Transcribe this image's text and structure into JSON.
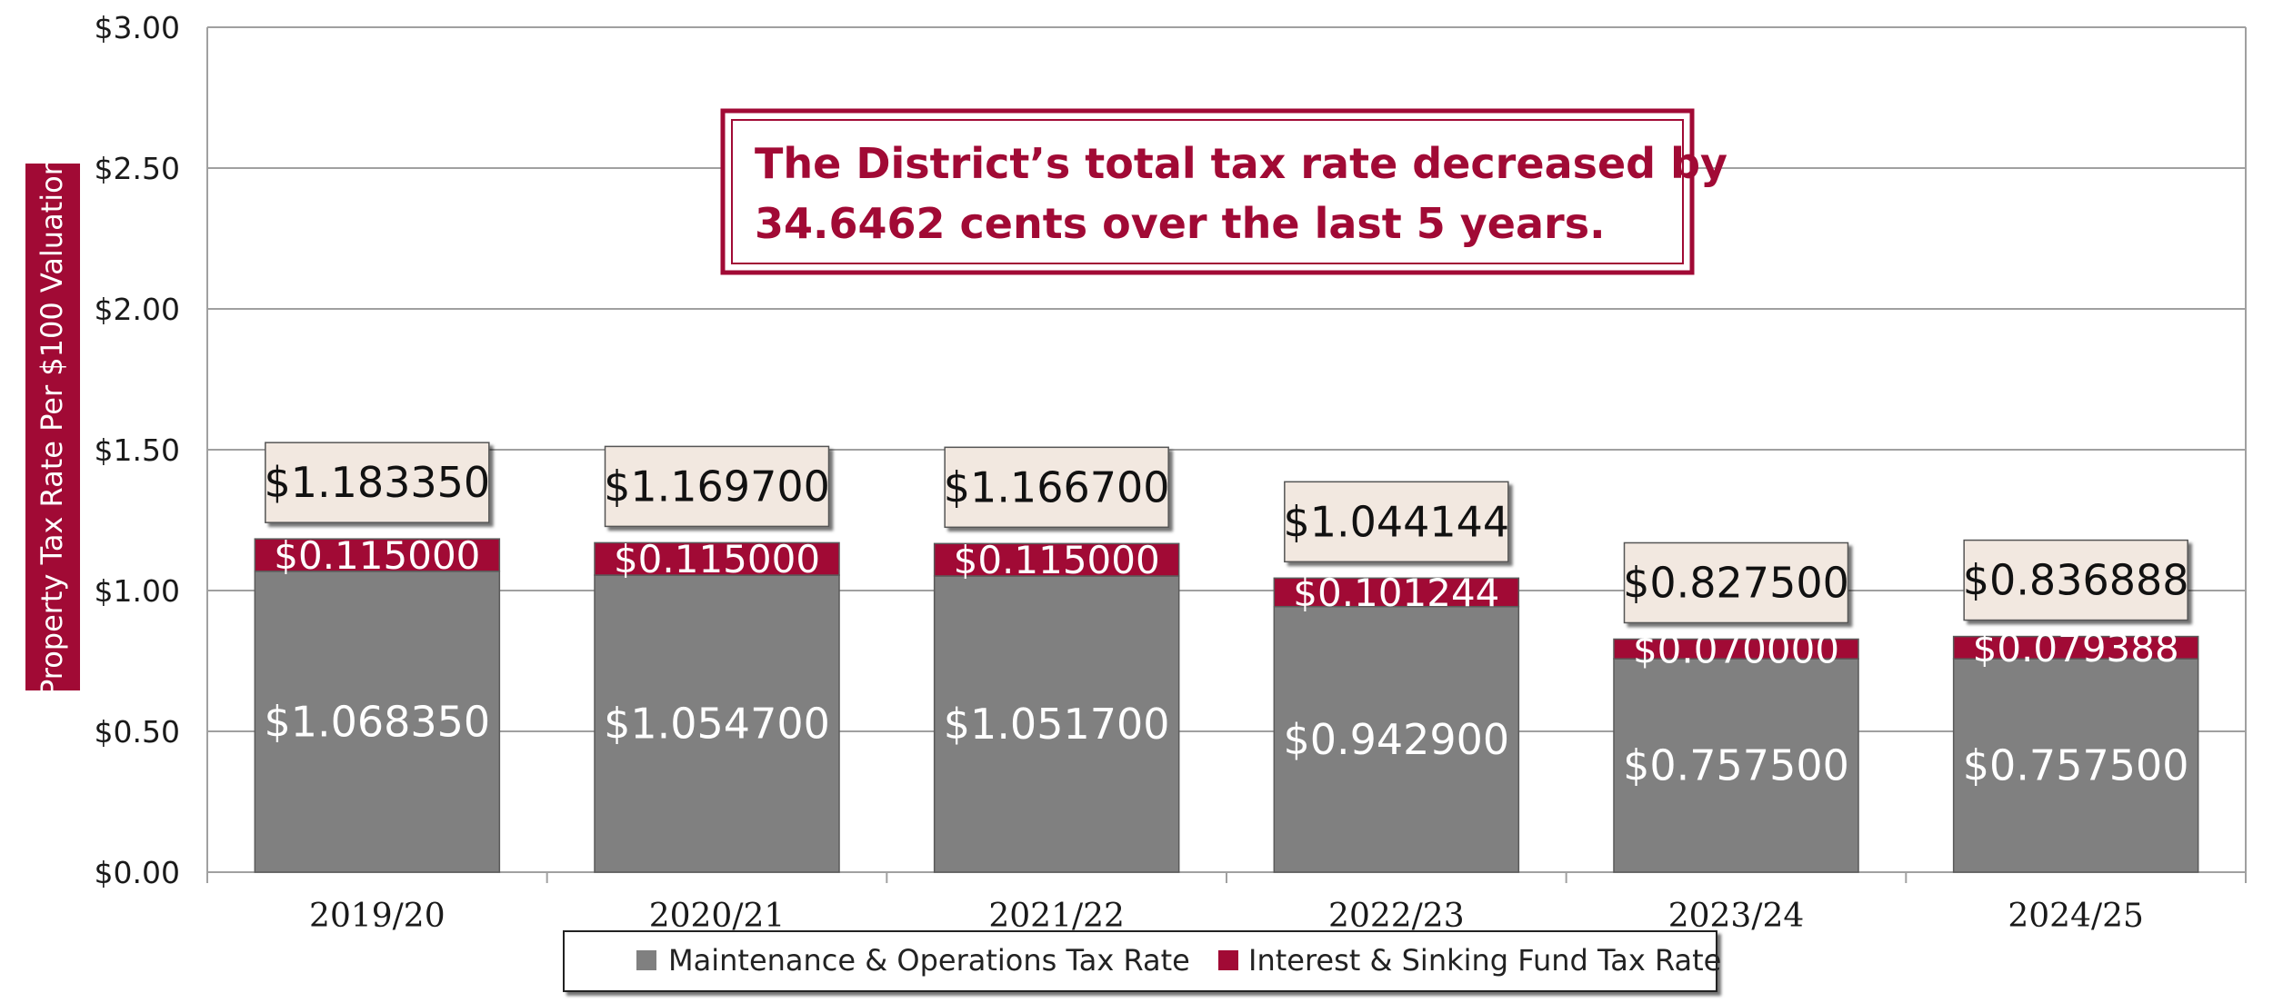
{
  "chart_data": {
    "type": "stacked-bar",
    "categories": [
      "2019/20",
      "2020/21",
      "2021/22",
      "2022/23",
      "2023/24",
      "2024/25"
    ],
    "series": [
      {
        "name": "Maintenance & Operations Tax Rate",
        "color": "#808080",
        "values": [
          1.06835,
          1.0547,
          1.0517,
          0.9429,
          0.7575,
          0.7575
        ],
        "labels": [
          "$1.068350",
          "$1.054700",
          "$1.051700",
          "$0.942900",
          "$0.757500",
          "$0.757500"
        ]
      },
      {
        "name": "Interest & Sinking Fund Tax Rate",
        "color": "#a10a35",
        "values": [
          0.115,
          0.115,
          0.115,
          0.101244,
          0.07,
          0.079388
        ],
        "labels": [
          "$0.115000",
          "$0.115000",
          "$0.115000",
          "$0.101244",
          "$0.070000",
          "$0.079388"
        ]
      }
    ],
    "totals": [
      1.18335,
      1.1697,
      1.1667,
      1.044144,
      0.8275,
      0.836888
    ],
    "total_labels": [
      "$1.183350",
      "$1.169700",
      "$1.166700",
      "$1.044144",
      "$0.827500",
      "$0.836888"
    ],
    "ylabel": "Property Tax Rate Per $100 Valuation",
    "xlabel": "",
    "ylim": [
      0,
      3
    ],
    "yticks": [
      0,
      0.5,
      1,
      1.5,
      2,
      2.5,
      3
    ],
    "ytick_labels": [
      "$0.00",
      "$0.50",
      "$1.00",
      "$1.50",
      "$2.00",
      "$2.50",
      "$3.00"
    ],
    "grid": true,
    "legend_position": "bottom",
    "annotation": {
      "lines": [
        "The District’s total tax rate decreased by",
        "34.6462 cents over the last 5 years."
      ]
    }
  },
  "colors": {
    "accent": "#a10a35",
    "bar_gray": "#808080",
    "label_box": "#f2e8e0",
    "grid": "#a0a0a0"
  }
}
